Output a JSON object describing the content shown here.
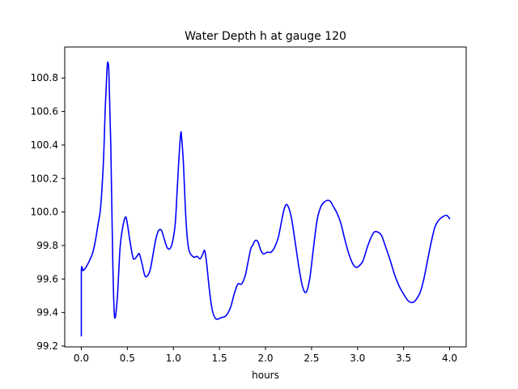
{
  "chart_data": {
    "type": "line",
    "title": "Water Depth h at gauge 120",
    "xlabel": "hours",
    "ylabel": "",
    "xlim": [
      -0.18,
      4.18
    ],
    "ylim": [
      99.195,
      100.985
    ],
    "grid": false,
    "legend": "none",
    "x_ticks": [
      0.0,
      0.5,
      1.0,
      1.5,
      2.0,
      2.5,
      3.0,
      3.5,
      4.0
    ],
    "x_tick_labels": [
      "0.0",
      "0.5",
      "1.0",
      "1.5",
      "2.0",
      "2.5",
      "3.0",
      "3.5",
      "4.0"
    ],
    "y_ticks": [
      99.2,
      99.4,
      99.6,
      99.8,
      100.0,
      100.2,
      100.4,
      100.6,
      100.8
    ],
    "y_tick_labels": [
      "99.2",
      "99.4",
      "99.6",
      "99.8",
      "100.0",
      "100.2",
      "100.4",
      "100.6",
      "100.8"
    ],
    "series": [
      {
        "color": "#0000ff",
        "x": [
          0.0,
          0.0,
          0.02,
          0.05,
          0.08,
          0.12,
          0.15,
          0.18,
          0.21,
          0.24,
          0.26,
          0.28,
          0.29,
          0.3,
          0.32,
          0.34,
          0.36,
          0.39,
          0.42,
          0.45,
          0.48,
          0.5,
          0.53,
          0.56,
          0.58,
          0.61,
          0.63,
          0.66,
          0.69,
          0.72,
          0.75,
          0.78,
          0.81,
          0.84,
          0.87,
          0.9,
          0.93,
          0.96,
          0.99,
          1.02,
          1.04,
          1.06,
          1.08,
          1.09,
          1.11,
          1.13,
          1.15,
          1.17,
          1.2,
          1.23,
          1.26,
          1.29,
          1.32,
          1.34,
          1.36,
          1.39,
          1.42,
          1.45,
          1.48,
          1.52,
          1.57,
          1.62,
          1.66,
          1.7,
          1.74,
          1.78,
          1.81,
          1.84,
          1.86,
          1.89,
          1.92,
          1.95,
          1.98,
          2.02,
          2.06,
          2.1,
          2.14,
          2.18,
          2.21,
          2.24,
          2.28,
          2.32,
          2.36,
          2.4,
          2.44,
          2.48,
          2.52,
          2.56,
          2.6,
          2.64,
          2.68,
          2.71,
          2.74,
          2.78,
          2.82,
          2.86,
          2.9,
          2.94,
          2.98,
          3.02,
          3.06,
          3.1,
          3.14,
          3.18,
          3.22,
          3.26,
          3.3,
          3.35,
          3.4,
          3.45,
          3.5,
          3.55,
          3.6,
          3.64,
          3.68,
          3.72,
          3.76,
          3.8,
          3.84,
          3.88,
          3.92,
          3.96,
          3.98,
          4.0
        ],
        "y": [
          99.26,
          99.645,
          99.65,
          99.67,
          99.7,
          99.75,
          99.82,
          99.92,
          100.03,
          100.3,
          100.62,
          100.86,
          100.89,
          100.82,
          100.4,
          99.75,
          99.38,
          99.48,
          99.78,
          99.91,
          99.97,
          99.93,
          99.82,
          99.73,
          99.72,
          99.74,
          99.75,
          99.69,
          99.62,
          99.62,
          99.66,
          99.75,
          99.84,
          99.89,
          99.89,
          99.84,
          99.79,
          99.78,
          99.82,
          99.93,
          100.12,
          100.32,
          100.47,
          100.44,
          100.28,
          100.02,
          99.85,
          99.77,
          99.74,
          99.73,
          99.735,
          99.72,
          99.75,
          99.77,
          99.7,
          99.54,
          99.42,
          99.37,
          99.36,
          99.37,
          99.38,
          99.43,
          99.51,
          99.57,
          99.57,
          99.62,
          99.7,
          99.78,
          99.8,
          99.83,
          99.82,
          99.77,
          99.75,
          99.76,
          99.76,
          99.79,
          99.85,
          99.96,
          100.03,
          100.04,
          99.97,
          99.83,
          99.68,
          99.56,
          99.52,
          99.6,
          99.78,
          99.95,
          100.03,
          100.06,
          100.07,
          100.06,
          100.03,
          99.99,
          99.93,
          99.84,
          99.76,
          99.7,
          99.67,
          99.68,
          99.71,
          99.78,
          99.84,
          99.88,
          99.88,
          99.86,
          99.8,
          99.72,
          99.63,
          99.56,
          99.51,
          99.47,
          99.46,
          99.48,
          99.52,
          99.6,
          99.71,
          99.82,
          99.91,
          99.95,
          99.97,
          99.98,
          99.975,
          99.96
        ]
      }
    ]
  }
}
